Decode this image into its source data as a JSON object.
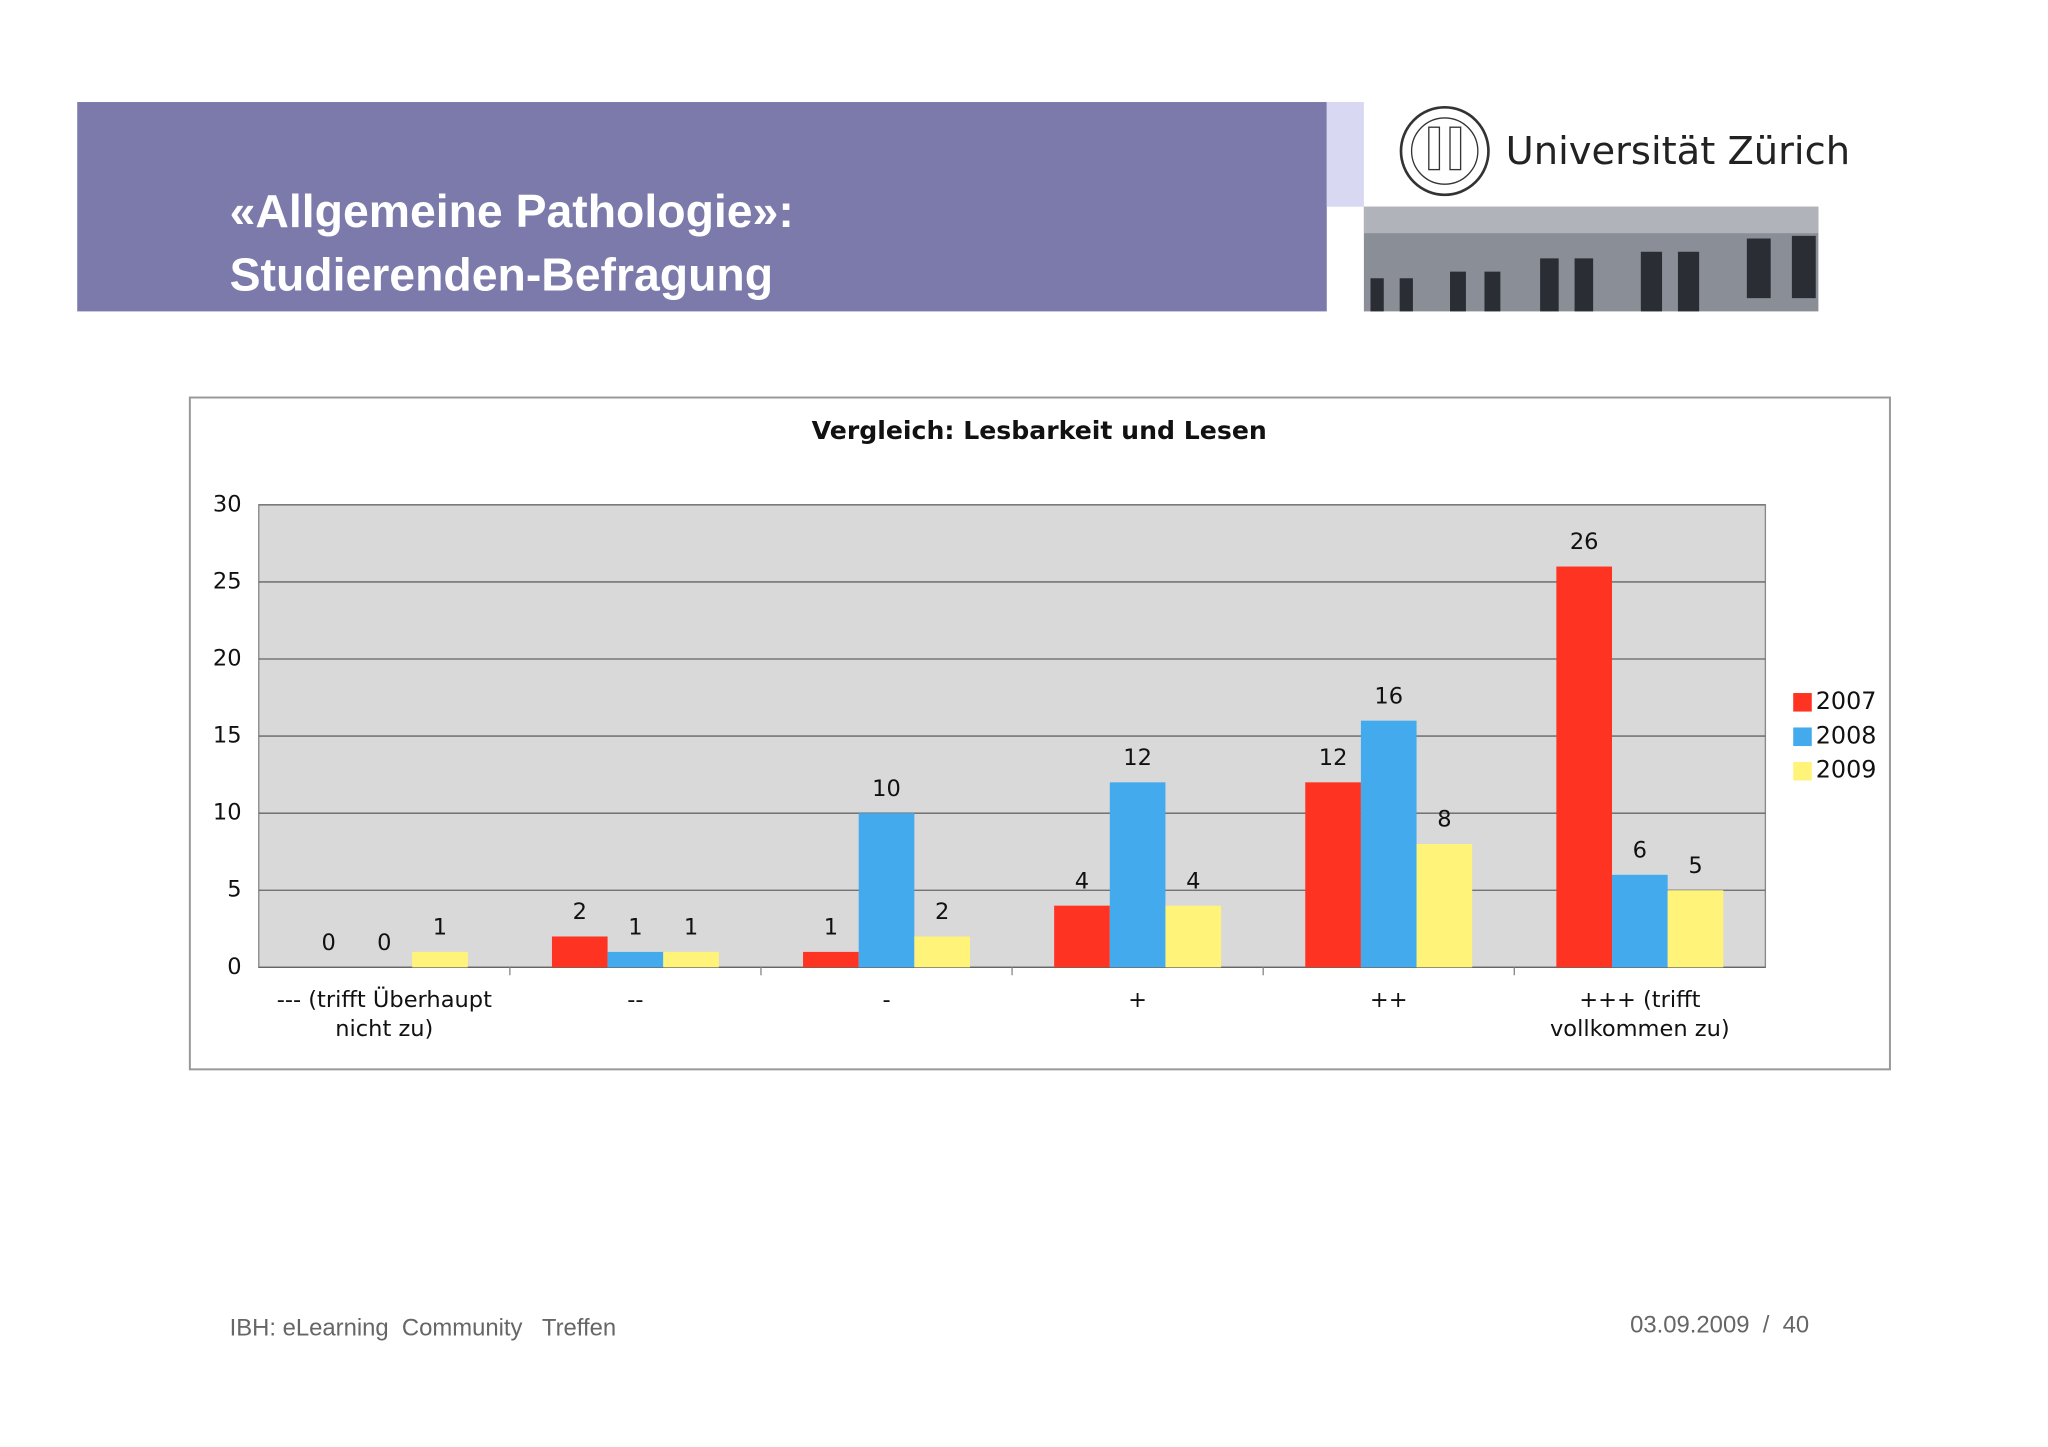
{
  "header": {
    "title_lines": [
      "«Allgemeine Pathologie»:",
      "Studierenden-Befragung"
    ],
    "logo_text": "Universität Zürich"
  },
  "footer": {
    "left": "IBH: eLearning  Community   Treffen",
    "right": "03.09.2009  /  40"
  },
  "chart_data": {
    "type": "bar",
    "title": "Vergleich: Lesbarkeit und Lesen",
    "categories": [
      "--- (trifft Überhaupt nicht zu)",
      "--",
      "-",
      "+",
      "++",
      "+++ (trifft vollkommen zu)"
    ],
    "series": [
      {
        "name": "2007",
        "color": "#ff3322",
        "values": [
          0,
          2,
          1,
          4,
          12,
          26
        ]
      },
      {
        "name": "2008",
        "color": "#44aaee",
        "values": [
          0,
          1,
          10,
          12,
          16,
          6
        ]
      },
      {
        "name": "2009",
        "color": "#fff37a",
        "values": [
          1,
          1,
          2,
          4,
          8,
          5
        ]
      }
    ],
    "ylim": [
      0,
      30
    ],
    "yticks": [
      0,
      5,
      10,
      15,
      20,
      25,
      30
    ],
    "grid": true,
    "legend": "right"
  }
}
